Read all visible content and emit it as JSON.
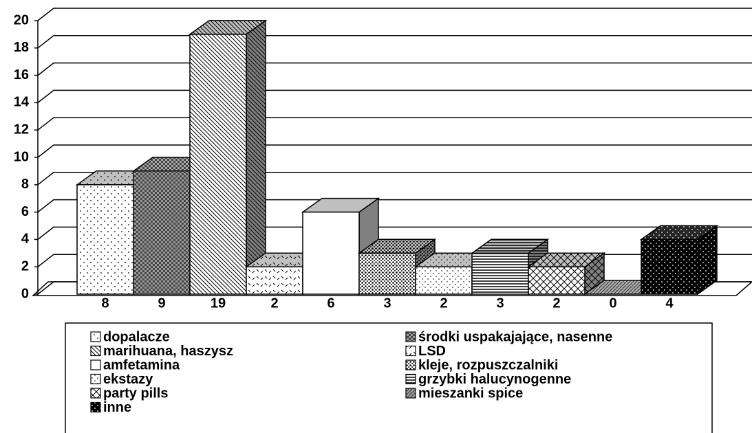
{
  "chart_data": {
    "type": "bar",
    "series": [
      {
        "name": "dopalacze",
        "color": "#ffffff",
        "pattern": "sparse-dots",
        "values": [
          8
        ]
      },
      {
        "name": "środki uspakajające, nasenne",
        "color": "#9a9a9a",
        "pattern": "checker",
        "values": [
          9
        ]
      },
      {
        "name": "marihuana, haszysz",
        "color": "#ffffff",
        "pattern": "diagonal",
        "values": [
          19
        ]
      },
      {
        "name": "LSD",
        "color": "#ffffff",
        "pattern": "dashes",
        "values": [
          2
        ]
      },
      {
        "name": "amfetamina",
        "color": "#ffffff",
        "pattern": "none",
        "values": [
          6
        ]
      },
      {
        "name": "kleje, rozpuszczalniki",
        "color": "#ffffff",
        "pattern": "dense-dots",
        "values": [
          3
        ]
      },
      {
        "name": "ekstazy",
        "color": "#ffffff",
        "pattern": "small-dots",
        "values": [
          2
        ]
      },
      {
        "name": "grzybki halucynogenne",
        "color": "#ffffff",
        "pattern": "horizontal",
        "values": [
          3
        ]
      },
      {
        "name": "party pills",
        "color": "#ffffff",
        "pattern": "cross",
        "values": [
          2
        ]
      },
      {
        "name": "mieszanki spice",
        "color": "#9a9a9a",
        "pattern": "diagonal-dense",
        "values": [
          0
        ]
      },
      {
        "name": "inne",
        "color": "#000000",
        "pattern": "light-dots",
        "values": [
          4
        ]
      }
    ],
    "ylim": [
      0,
      20
    ],
    "yticks": [
      0,
      2,
      4,
      6,
      8,
      10,
      12,
      14,
      16,
      18,
      20
    ],
    "grid": true
  }
}
